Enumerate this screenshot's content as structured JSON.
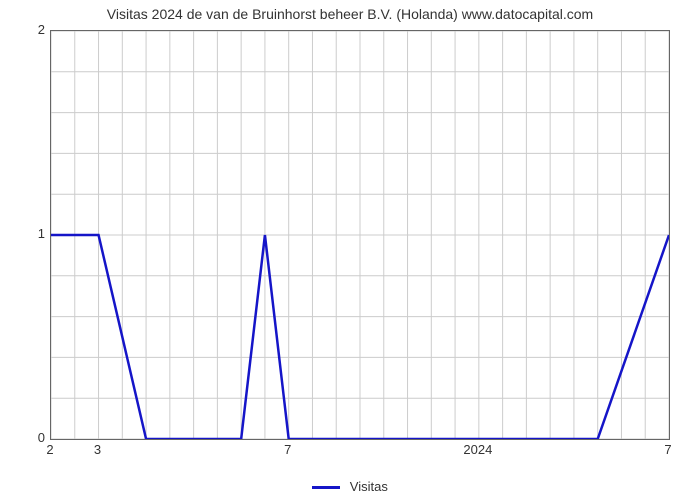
{
  "chart": {
    "type": "line",
    "title": "Visitas 2024 de van de Bruinhorst beheer B.V. (Holanda) www.datocapital.com",
    "title_fontsize": 14,
    "background_color": "#ffffff",
    "plot_border_color": "#666666",
    "grid_color": "#cccccc",
    "ylim": [
      0,
      2
    ],
    "yticks": [
      0,
      1,
      2
    ],
    "xlim": [
      0,
      52
    ],
    "xticks": [
      {
        "pos": 0,
        "label": "2"
      },
      {
        "pos": 4,
        "label": "3"
      },
      {
        "pos": 8,
        "label": ""
      },
      {
        "pos": 12,
        "label": ""
      },
      {
        "pos": 16,
        "label": ""
      },
      {
        "pos": 20,
        "label": "7"
      },
      {
        "pos": 24,
        "label": ""
      },
      {
        "pos": 28,
        "label": ""
      },
      {
        "pos": 32,
        "label": ""
      },
      {
        "pos": 36,
        "label": "2024"
      },
      {
        "pos": 40,
        "label": ""
      },
      {
        "pos": 44,
        "label": ""
      },
      {
        "pos": 48,
        "label": ""
      },
      {
        "pos": 52,
        "label": "7"
      }
    ],
    "xgrid_step": 2,
    "ygrid_minor_step": 0.2,
    "series": {
      "name": "Visitas",
      "color": "#1515c8",
      "line_width": 2.5,
      "points": [
        [
          0,
          1
        ],
        [
          4,
          1
        ],
        [
          8,
          0
        ],
        [
          12,
          0
        ],
        [
          16,
          0
        ],
        [
          18,
          1
        ],
        [
          20,
          0
        ],
        [
          24,
          0
        ],
        [
          28,
          0
        ],
        [
          32,
          0
        ],
        [
          36,
          0
        ],
        [
          40,
          0
        ],
        [
          44,
          0
        ],
        [
          46,
          0
        ],
        [
          52,
          1
        ]
      ]
    },
    "legend_label": "Visitas"
  }
}
